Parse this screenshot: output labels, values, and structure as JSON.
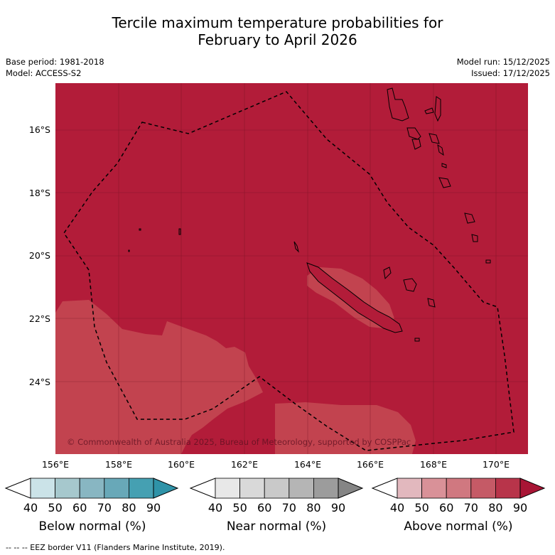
{
  "title_line1": "Tercile maximum temperature probabilities for",
  "title_line2": "February to April 2026",
  "base_period": "Base period: 1981-2018",
  "model": "Model: ACCESS-S2",
  "model_run": "Model run: 15/12/2025",
  "issued": "Issued: 17/12/2025",
  "map": {
    "lat_labels": [
      "16°S",
      "18°S",
      "20°S",
      "22°S",
      "24°S"
    ],
    "lon_labels": [
      "156°E",
      "158°E",
      "160°E",
      "162°E",
      "164°E",
      "166°E",
      "168°E",
      "170°E"
    ],
    "copyright": "© Commonwealth of Australia 2025, Bureau of Meteorology, supported by COSPPac",
    "colors": {
      "above_80_90": "#b21c39",
      "above_70_80": "#c2434f"
    }
  },
  "colorbars": [
    {
      "title": "Below normal (%)",
      "ticks": [
        "40",
        "50",
        "60",
        "70",
        "80",
        "90"
      ],
      "colors": [
        "#cbe3e8",
        "#a6c8cd",
        "#88b6c2",
        "#68a8b8",
        "#45a0b2"
      ],
      "tip": "#2f93a8"
    },
    {
      "title": "Near normal (%)",
      "ticks": [
        "40",
        "50",
        "60",
        "70",
        "80",
        "90"
      ],
      "colors": [
        "#e8e8e8",
        "#d9d9d9",
        "#c9c9c9",
        "#b5b5b5",
        "#9c9c9c"
      ],
      "tip": "#858585"
    },
    {
      "title": "Above normal (%)",
      "ticks": [
        "40",
        "50",
        "60",
        "70",
        "80",
        "90"
      ],
      "colors": [
        "#e2b8be",
        "#d99198",
        "#d07880",
        "#c55a66",
        "#b8344a"
      ],
      "tip": "#a81535"
    }
  ],
  "footer": "--  --  -- EEZ border V11 (Flanders Marine Institute, 2019)."
}
